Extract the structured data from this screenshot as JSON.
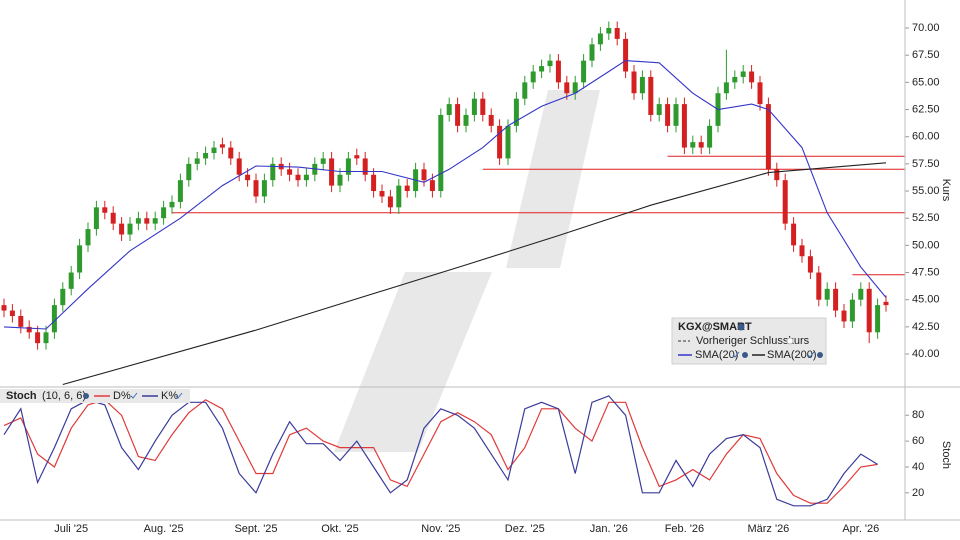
{
  "chart_data": [
    {
      "type": "candlestick",
      "title": "KGX@SMART",
      "legend_note": "Vorheriger Schlusskurs",
      "ylabel": "Kurs",
      "categories": [
        null,
        null,
        null,
        null,
        null,
        null,
        null,
        null,
        "Juli '25",
        null,
        null,
        null,
        null,
        null,
        null,
        null,
        null,
        null,
        null,
        "Aug. '25",
        null,
        null,
        null,
        null,
        null,
        null,
        null,
        null,
        null,
        null,
        "Sept. '25",
        null,
        null,
        null,
        null,
        null,
        null,
        null,
        null,
        null,
        "Okt. '25",
        null,
        null,
        null,
        null,
        null,
        null,
        null,
        null,
        null,
        null,
        null,
        "Nov. '25",
        null,
        null,
        null,
        null,
        null,
        null,
        null,
        null,
        null,
        "Dez. '25",
        null,
        null,
        null,
        null,
        null,
        null,
        null,
        null,
        null,
        "Jan. '26",
        null,
        null,
        null,
        null,
        null,
        null,
        null,
        null,
        "Feb. '26",
        null,
        null,
        null,
        null,
        null,
        null,
        null,
        null,
        null,
        "März '26",
        null,
        null,
        null,
        null,
        null,
        null,
        null,
        null,
        null,
        null,
        "Apr. '26",
        null,
        null,
        null
      ],
      "open": [
        44.5,
        44,
        43.5,
        42.5,
        42,
        41,
        42,
        44.5,
        46,
        47.5,
        50,
        51.5,
        53.5,
        53,
        52,
        51,
        52,
        52.5,
        52,
        52.5,
        53.5,
        54,
        56,
        57.5,
        58,
        58.5,
        59.3,
        59,
        58,
        56.5,
        56,
        54.5,
        56,
        57.5,
        57,
        56.5,
        56,
        56.5,
        57.5,
        58,
        55.5,
        56.5,
        58.3,
        58,
        56.5,
        55,
        54.5,
        53.5,
        55.5,
        55,
        57,
        56,
        55,
        62,
        63,
        61,
        62,
        63.5,
        62,
        61,
        58,
        61,
        63.5,
        65,
        66,
        66.5,
        67,
        65,
        64,
        65,
        67,
        68.5,
        69.5,
        70,
        69,
        66,
        64,
        65.5,
        62,
        63,
        61,
        63,
        59,
        59.5,
        59,
        61,
        64,
        65,
        65.5,
        66,
        65,
        63,
        57,
        56,
        52,
        50,
        49,
        47.5,
        45,
        46,
        44,
        43,
        45,
        46,
        42,
        44.8
      ],
      "high": [
        45.1,
        44.6,
        44.1,
        43.1,
        42.6,
        42.6,
        45.1,
        46.6,
        48.1,
        50.6,
        52.1,
        54.1,
        54.1,
        53.6,
        52.6,
        52.6,
        53.1,
        53.1,
        53.1,
        54.1,
        54.6,
        56.6,
        58.1,
        58.6,
        59.1,
        59.6,
        59.9,
        59.6,
        58.6,
        57.1,
        56.6,
        56.6,
        58.1,
        58.1,
        57.6,
        57.1,
        57.1,
        58.1,
        58.6,
        58.6,
        57.1,
        58.6,
        58.9,
        58.6,
        57.1,
        55.6,
        55.1,
        56.1,
        56.1,
        57.6,
        57.6,
        56.6,
        62.6,
        63.6,
        63.6,
        62.6,
        64.1,
        64.1,
        62.6,
        61.6,
        61.6,
        64.1,
        65.6,
        66.6,
        67.1,
        67.6,
        67.6,
        65.6,
        65.6,
        67.6,
        69.1,
        70.1,
        70.6,
        70.6,
        69.6,
        66.6,
        66.1,
        66.1,
        63.6,
        63.6,
        63.6,
        63.6,
        60.1,
        60.1,
        61.6,
        64.6,
        68,
        66.1,
        66.6,
        66.6,
        65.6,
        63.6,
        57.6,
        56.6,
        52.6,
        50.6,
        49.6,
        48.1,
        46.6,
        46.6,
        44.6,
        45.6,
        46.6,
        46.6,
        45.1,
        45.4
      ],
      "low": [
        43.4,
        42.9,
        41.9,
        41.4,
        40.4,
        40.4,
        41.4,
        43.9,
        45.4,
        46.9,
        49.4,
        50.9,
        52.4,
        51.4,
        50.4,
        50.4,
        51.4,
        51.4,
        51.4,
        51.9,
        52.9,
        53.4,
        55.4,
        56.9,
        57.4,
        57.9,
        58.4,
        57.4,
        55.9,
        55.4,
        53.9,
        53.9,
        55.4,
        56.4,
        55.9,
        55.4,
        55.4,
        55.9,
        56.9,
        54.9,
        54.9,
        55.9,
        57.4,
        55.9,
        54.4,
        53.9,
        52.9,
        52.9,
        54.4,
        54.4,
        55.4,
        54.4,
        54.4,
        61.4,
        60.4,
        60.4,
        61.4,
        61.4,
        60.4,
        57.4,
        57.4,
        60.4,
        62.9,
        64.4,
        65.4,
        65.9,
        64.4,
        63.4,
        63.4,
        64.4,
        66.4,
        67.9,
        68.9,
        68.4,
        65.4,
        63.4,
        63.4,
        61.4,
        61.4,
        60.4,
        60.4,
        58.4,
        58.4,
        58.4,
        58.4,
        60.4,
        63.4,
        64.4,
        64.9,
        64.4,
        62.4,
        56.4,
        55.4,
        51.4,
        49.4,
        48.4,
        46.9,
        44.4,
        44.4,
        43.4,
        42.4,
        42.4,
        44.4,
        41,
        41.4,
        43.9
      ],
      "close": [
        44,
        43.5,
        42.5,
        42,
        41,
        42,
        44.5,
        46,
        47.5,
        50,
        51.5,
        53.5,
        53,
        52,
        51,
        52,
        52.5,
        52,
        52.5,
        53.5,
        54,
        56,
        57.5,
        58,
        58.5,
        59,
        59,
        58,
        56.5,
        56,
        54.5,
        56,
        57.5,
        57,
        56.5,
        56,
        56.5,
        57.5,
        58,
        55.5,
        56.5,
        58,
        58,
        56.5,
        55,
        54.5,
        53.5,
        55.5,
        55,
        57,
        56,
        55,
        62,
        63,
        61,
        62,
        63.5,
        62,
        61,
        58,
        61,
        63.5,
        65,
        66,
        66.5,
        67,
        65,
        64,
        65,
        67,
        68.5,
        69.5,
        70,
        69,
        66,
        64,
        65.5,
        62,
        63,
        61,
        63,
        59,
        59.5,
        59,
        61,
        64,
        65,
        65.5,
        66,
        65,
        63,
        57,
        56,
        52,
        50,
        49,
        47.5,
        45,
        46,
        44,
        43,
        45,
        46,
        42,
        44.5,
        44.5
      ],
      "up_color": "#2e9a2e",
      "down_color": "#d42020",
      "series": [
        {
          "name": "SMA(20)",
          "color": "#3535c8",
          "x": [
            0,
            5,
            10,
            15,
            21,
            26,
            30,
            35,
            40,
            45,
            50,
            53,
            57,
            60,
            64,
            68,
            72,
            74,
            78,
            82,
            85,
            89,
            91,
            95,
            98,
            102,
            105
          ],
          "values": [
            42.5,
            42.3,
            46,
            49.5,
            52.5,
            55.5,
            57.3,
            57.2,
            56.8,
            56.8,
            55.8,
            57,
            59,
            61,
            62.8,
            64,
            66,
            67,
            66.8,
            64,
            62.5,
            63,
            62.5,
            59,
            53,
            48,
            45.2
          ]
        },
        {
          "name": "SMA(200)",
          "color": "#222222",
          "x": [
            7,
            30,
            55,
            66,
            77,
            91,
            105
          ],
          "values": [
            37.2,
            42.2,
            48.2,
            50.9,
            53.7,
            56.7,
            57.6
          ]
        }
      ],
      "levels": [
        {
          "value": 53,
          "x": 20
        },
        {
          "value": 57,
          "x": 57
        },
        {
          "value": 58.2,
          "x": 79
        },
        {
          "value": 47.3,
          "x": 101
        }
      ],
      "level_color": "#e02020",
      "ylim": [
        37.15,
        72.58
      ],
      "yticks": [
        {
          "value": 40,
          "label": "40.00"
        },
        {
          "value": 42.5,
          "label": "42.50"
        },
        {
          "value": 45,
          "label": "45.00"
        },
        {
          "value": 47.5,
          "label": "47.50"
        },
        {
          "value": 50,
          "label": "50.00"
        },
        {
          "value": 52.5,
          "label": "52.50"
        },
        {
          "value": 55,
          "label": "55.00"
        },
        {
          "value": 57.5,
          "label": "57.50"
        },
        {
          "value": 60,
          "label": "60.00"
        },
        {
          "value": 62.5,
          "label": "62.50"
        },
        {
          "value": 65,
          "label": "65.00"
        },
        {
          "value": 67.5,
          "label": "67.50"
        },
        {
          "value": 70,
          "label": "70.00"
        }
      ]
    },
    {
      "type": "line",
      "title": "Stoch",
      "subtitle": "(10, 6, 6)",
      "ylabel": "Stoch",
      "x": [
        0,
        2,
        4,
        6,
        8,
        10,
        12,
        14,
        16,
        18,
        20,
        22,
        24,
        26,
        28,
        30,
        32,
        34,
        36,
        38,
        40,
        42,
        44,
        46,
        48,
        50,
        52,
        54,
        56,
        58,
        60,
        62,
        64,
        66,
        68,
        70,
        72,
        74,
        76,
        78,
        80,
        82,
        84,
        86,
        88,
        90,
        92,
        94,
        96,
        98,
        100,
        102,
        104
      ],
      "series": [
        {
          "name": "D%",
          "color": "#e03a3a",
          "values": [
            72,
            78,
            50,
            40,
            70,
            88,
            92,
            80,
            48,
            45,
            65,
            82,
            92,
            85,
            60,
            35,
            35,
            65,
            70,
            60,
            55,
            55,
            55,
            30,
            25,
            50,
            75,
            82,
            75,
            65,
            38,
            55,
            85,
            85,
            70,
            60,
            90,
            90,
            55,
            25,
            30,
            38,
            30,
            50,
            65,
            62,
            35,
            18,
            12,
            12,
            25,
            40,
            42
          ]
        },
        {
          "name": "K%",
          "color": "#3b3b9b",
          "values": [
            65,
            85,
            28,
            55,
            85,
            92,
            88,
            55,
            38,
            60,
            80,
            90,
            90,
            70,
            35,
            20,
            50,
            75,
            58,
            58,
            45,
            60,
            40,
            20,
            30,
            70,
            85,
            80,
            70,
            50,
            30,
            85,
            90,
            85,
            35,
            90,
            95,
            80,
            20,
            20,
            45,
            25,
            50,
            62,
            65,
            55,
            15,
            10,
            10,
            15,
            35,
            50,
            42
          ]
        }
      ],
      "ylim": [
        -1,
        98
      ],
      "yticks": [
        20,
        40,
        60,
        80
      ]
    }
  ]
}
